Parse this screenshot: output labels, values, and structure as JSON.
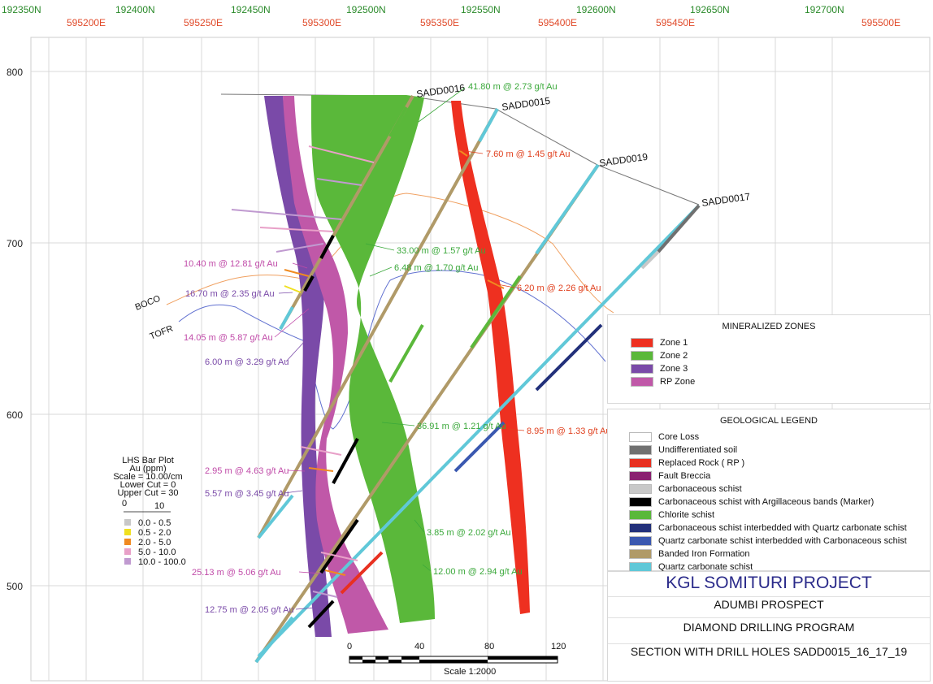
{
  "northings": [
    "192350N",
    "192400N",
    "192450N",
    "192500N",
    "192550N",
    "192600N",
    "192650N",
    "192700N"
  ],
  "eastings": [
    "595200E",
    "595250E",
    "595300E",
    "595350E",
    "595400E",
    "595450E",
    "595500E"
  ],
  "elevations": [
    "800",
    "700",
    "600",
    "500"
  ],
  "drill_holes": [
    "SADD0016",
    "SADD0015",
    "SADD0019",
    "SADD0017"
  ],
  "intercepts": {
    "green": [
      "41.80 m @ 2.73 g/t Au",
      "33.00 m @ 1.57 g/t Au",
      "6.48 m @ 1.70 g/t Au",
      "36.91 m @ 1.21 g/t Au",
      "3.85 m @ 2.02 g/t Au",
      "12.00 m @ 2.94 g/t Au"
    ],
    "red": [
      "7.60 m @ 1.45 g/t Au",
      "6.20 m @ 2.26 g/t Au",
      "8.95 m @ 1.33 g/t Au"
    ],
    "pink": [
      "10.40 m @ 12.81 g/t Au",
      "14.05 m @ 5.87 g/t Au",
      "2.95 m @ 4.63 g/t Au",
      "25.13 m @ 5.06 g/t Au"
    ],
    "purple": [
      "16.70 m @ 2.35 g/t Au",
      "6.00 m @ 3.29 g/t Au",
      "5.57 m @ 3.45 g/t Au",
      "12.75 m @ 2.05 g/t Au"
    ]
  },
  "surfaces": [
    "BOCO",
    "TOFR"
  ],
  "bar_plot": {
    "title": "LHS Bar Plot",
    "unit": "Au (ppm)",
    "scale": "Scale = 10.00/cm",
    "lower_cut": "Lower Cut = 0",
    "upper_cut": "Upper Cut = 30",
    "axis_start": "0",
    "axis_end": "10",
    "bins": [
      {
        "label": "0.0 - 0.5",
        "color": "#c8c8c8"
      },
      {
        "label": "0.5 - 2.0",
        "color": "#f0e020"
      },
      {
        "label": "2.0 - 5.0",
        "color": "#f08a20"
      },
      {
        "label": "5.0 - 10.0",
        "color": "#e8a0c8"
      },
      {
        "label": "10.0 - 100.0",
        "color": "#c09ad0"
      }
    ]
  },
  "mineralized_zones": {
    "title": "MINERALIZED ZONES",
    "items": [
      {
        "label": "Zone 1",
        "color": "#ee3020"
      },
      {
        "label": "Zone 2",
        "color": "#5ab83a"
      },
      {
        "label": "Zone 3",
        "color": "#7a4aa8"
      },
      {
        "label": "RP Zone",
        "color": "#c058a8"
      }
    ]
  },
  "geological_legend": {
    "title": "GEOLOGICAL LEGEND",
    "items": [
      {
        "label": "Core Loss",
        "color": "#ffffff"
      },
      {
        "label": "Undifferentiated soil",
        "color": "#707070"
      },
      {
        "label": "Replaced Rock ( RP )",
        "color": "#e83020"
      },
      {
        "label": "Fault Breccia",
        "color": "#8a2070"
      },
      {
        "label": "Carbonaceous schist",
        "color": "#c8c8c8"
      },
      {
        "label": "Carbonaceous schist with Argillaceous bands (Marker)",
        "color": "#000000"
      },
      {
        "label": "Chlorite schist",
        "color": "#5ab83a"
      },
      {
        "label": "Carbonaceous schist interbedded with Quartz carbonate schist",
        "color": "#22307a"
      },
      {
        "label": "Quartz carbonate schist interbedded with Carbonaceous schist",
        "color": "#3a58b0"
      },
      {
        "label": "Banded Iron Formation",
        "color": "#b09a68"
      },
      {
        "label": "Quartz carbonate schist",
        "color": "#60c8d8"
      }
    ]
  },
  "scale_bar": {
    "ticks": [
      "0",
      "40",
      "80",
      "120"
    ],
    "label": "Scale 1:2000"
  },
  "title_block": {
    "project": "KGL SOMITURI PROJECT",
    "prospect": "ADUMBI PROSPECT",
    "program": "DIAMOND DRILLING PROGRAM",
    "section": "SECTION WITH DRILL HOLES SADD0015_16_17_19"
  }
}
